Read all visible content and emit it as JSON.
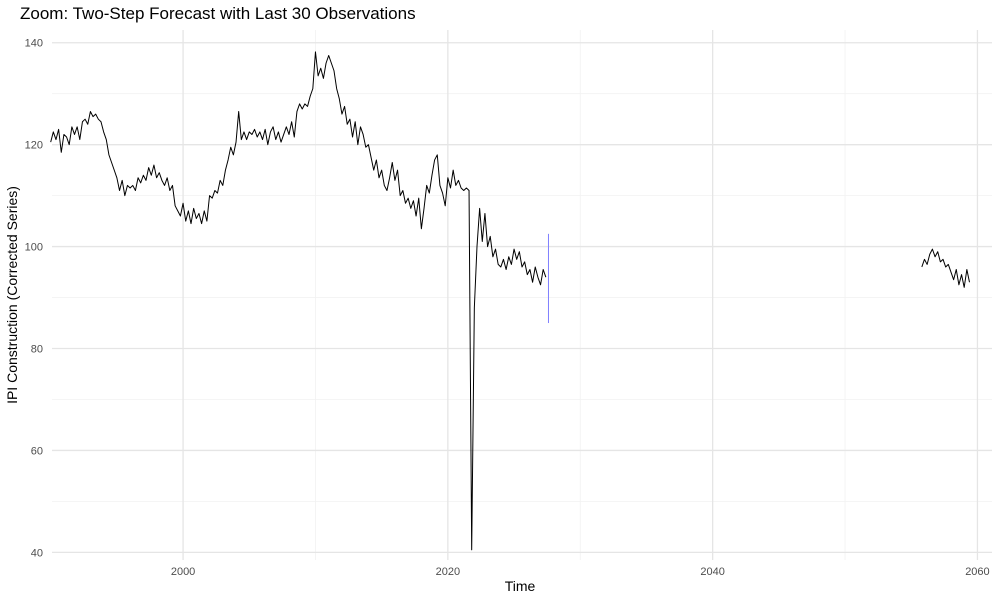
{
  "chart_data": {
    "type": "line",
    "title": "Zoom: Two-Step Forecast with Last 30 Observations",
    "xlabel": "Time",
    "ylabel": "IPI Construction (Corrected Series)",
    "xlim": [
      1990.1,
      2061.1
    ],
    "ylim": [
      38.5,
      142.5
    ],
    "x_ticks": [
      2000,
      2020,
      2040,
      2060
    ],
    "y_ticks": [
      40,
      60,
      80,
      100,
      120,
      140
    ],
    "grid": true,
    "legend": "none",
    "colors": {
      "observed": "#000000",
      "forecast_interval": "#8080ff"
    },
    "series": [
      {
        "points": [
          [
            1990.0,
            120.5
          ],
          [
            1990.2,
            122.5
          ],
          [
            1990.4,
            121.0
          ],
          [
            1990.6,
            123.0
          ],
          [
            1990.8,
            118.5
          ],
          [
            1991.0,
            122.0
          ],
          [
            1991.2,
            121.5
          ],
          [
            1991.4,
            120.0
          ],
          [
            1991.6,
            123.5
          ],
          [
            1991.8,
            122.0
          ],
          [
            1992.0,
            123.5
          ],
          [
            1992.2,
            121.0
          ],
          [
            1992.4,
            124.5
          ],
          [
            1992.6,
            125.0
          ],
          [
            1992.8,
            124.0
          ],
          [
            1993.0,
            126.5
          ],
          [
            1993.2,
            125.5
          ],
          [
            1993.4,
            126.0
          ],
          [
            1993.6,
            125.0
          ],
          [
            1993.8,
            124.5
          ],
          [
            1994.0,
            122.5
          ],
          [
            1994.2,
            121.0
          ],
          [
            1994.4,
            118.0
          ],
          [
            1994.6,
            116.5
          ],
          [
            1994.8,
            115.0
          ],
          [
            1995.0,
            113.5
          ],
          [
            1995.2,
            111.0
          ],
          [
            1995.4,
            113.0
          ],
          [
            1995.6,
            110.0
          ],
          [
            1995.8,
            112.0
          ],
          [
            1996.0,
            111.5
          ],
          [
            1996.2,
            112.0
          ],
          [
            1996.4,
            111.0
          ],
          [
            1996.6,
            113.5
          ],
          [
            1996.8,
            112.5
          ],
          [
            1997.0,
            114.0
          ],
          [
            1997.2,
            113.0
          ],
          [
            1997.4,
            115.5
          ],
          [
            1997.6,
            114.0
          ],
          [
            1997.8,
            116.0
          ],
          [
            1998.0,
            113.5
          ],
          [
            1998.2,
            114.5
          ],
          [
            1998.4,
            113.0
          ],
          [
            1998.6,
            112.0
          ],
          [
            1998.8,
            113.5
          ],
          [
            1999.0,
            111.0
          ],
          [
            1999.2,
            112.0
          ],
          [
            1999.4,
            108.0
          ],
          [
            1999.6,
            107.0
          ],
          [
            1999.8,
            106.0
          ],
          [
            2000.0,
            108.5
          ],
          [
            2000.2,
            105.0
          ],
          [
            2000.4,
            107.0
          ],
          [
            2000.6,
            104.5
          ],
          [
            2000.8,
            107.5
          ],
          [
            2001.0,
            105.5
          ],
          [
            2001.2,
            106.5
          ],
          [
            2001.4,
            104.5
          ],
          [
            2001.6,
            107.0
          ],
          [
            2001.8,
            105.0
          ],
          [
            2002.0,
            110.0
          ],
          [
            2002.2,
            109.5
          ],
          [
            2002.4,
            111.0
          ],
          [
            2002.6,
            110.5
          ],
          [
            2002.8,
            113.0
          ],
          [
            2003.0,
            112.0
          ],
          [
            2003.2,
            115.0
          ],
          [
            2003.4,
            117.0
          ],
          [
            2003.6,
            119.5
          ],
          [
            2003.8,
            118.0
          ],
          [
            2004.0,
            120.5
          ],
          [
            2004.2,
            126.5
          ],
          [
            2004.4,
            121.0
          ],
          [
            2004.6,
            122.5
          ],
          [
            2004.8,
            121.0
          ],
          [
            2005.0,
            122.5
          ],
          [
            2005.2,
            122.0
          ],
          [
            2005.4,
            123.0
          ],
          [
            2005.6,
            121.5
          ],
          [
            2005.8,
            122.5
          ],
          [
            2006.0,
            121.0
          ],
          [
            2006.2,
            123.0
          ],
          [
            2006.4,
            120.0
          ],
          [
            2006.6,
            122.5
          ],
          [
            2006.8,
            123.5
          ],
          [
            2007.0,
            121.0
          ],
          [
            2007.2,
            122.5
          ],
          [
            2007.4,
            120.5
          ],
          [
            2007.6,
            122.0
          ],
          [
            2007.8,
            123.5
          ],
          [
            2008.0,
            122.0
          ],
          [
            2008.2,
            124.5
          ],
          [
            2008.4,
            121.5
          ],
          [
            2008.6,
            126.5
          ],
          [
            2008.8,
            128.0
          ],
          [
            2009.0,
            127.0
          ],
          [
            2009.2,
            128.0
          ],
          [
            2009.4,
            127.5
          ],
          [
            2009.6,
            129.5
          ],
          [
            2009.8,
            131.0
          ],
          [
            2010.0,
            138.2
          ],
          [
            2010.2,
            133.5
          ],
          [
            2010.4,
            135.0
          ],
          [
            2010.6,
            133.0
          ],
          [
            2010.8,
            136.0
          ],
          [
            2011.0,
            137.5
          ],
          [
            2011.2,
            136.0
          ],
          [
            2011.4,
            134.5
          ],
          [
            2011.6,
            131.0
          ],
          [
            2011.8,
            129.0
          ],
          [
            2012.0,
            126.0
          ],
          [
            2012.2,
            127.5
          ],
          [
            2012.4,
            124.0
          ],
          [
            2012.6,
            125.0
          ],
          [
            2012.8,
            121.5
          ],
          [
            2013.0,
            124.5
          ],
          [
            2013.2,
            120.0
          ],
          [
            2013.4,
            123.5
          ],
          [
            2013.6,
            122.0
          ],
          [
            2013.8,
            119.5
          ],
          [
            2014.0,
            120.0
          ],
          [
            2014.2,
            117.5
          ],
          [
            2014.4,
            115.0
          ],
          [
            2014.6,
            117.0
          ],
          [
            2014.8,
            113.5
          ],
          [
            2015.0,
            115.0
          ],
          [
            2015.2,
            112.0
          ],
          [
            2015.4,
            111.0
          ],
          [
            2015.6,
            113.5
          ],
          [
            2015.8,
            116.5
          ],
          [
            2016.0,
            113.0
          ],
          [
            2016.2,
            115.0
          ],
          [
            2016.4,
            110.0
          ],
          [
            2016.6,
            111.0
          ],
          [
            2016.8,
            108.5
          ],
          [
            2017.0,
            109.5
          ],
          [
            2017.2,
            107.5
          ],
          [
            2017.4,
            109.0
          ],
          [
            2017.6,
            106.0
          ],
          [
            2017.8,
            109.5
          ],
          [
            2018.0,
            103.5
          ],
          [
            2018.2,
            107.5
          ],
          [
            2018.4,
            112.0
          ],
          [
            2018.6,
            110.5
          ],
          [
            2018.8,
            114.0
          ],
          [
            2019.0,
            117.0
          ],
          [
            2019.2,
            118.0
          ],
          [
            2019.4,
            112.0
          ],
          [
            2019.6,
            110.5
          ],
          [
            2019.8,
            108.0
          ],
          [
            2020.0,
            113.5
          ],
          [
            2020.2,
            111.5
          ],
          [
            2020.4,
            115.0
          ],
          [
            2020.6,
            112.0
          ],
          [
            2020.8,
            113.0
          ],
          [
            2021.0,
            111.5
          ],
          [
            2021.2,
            111.0
          ],
          [
            2021.4,
            111.5
          ],
          [
            2021.6,
            111.0
          ],
          [
            2021.8,
            40.5
          ],
          [
            2022.0,
            88.0
          ],
          [
            2022.2,
            100.0
          ],
          [
            2022.4,
            107.5
          ],
          [
            2022.6,
            101.0
          ],
          [
            2022.8,
            106.5
          ],
          [
            2023.0,
            100.0
          ],
          [
            2023.2,
            102.0
          ],
          [
            2023.4,
            98.0
          ],
          [
            2023.6,
            99.5
          ],
          [
            2023.8,
            96.5
          ],
          [
            2024.0,
            96.0
          ],
          [
            2024.2,
            97.5
          ],
          [
            2024.4,
            95.5
          ],
          [
            2024.6,
            98.0
          ],
          [
            2024.8,
            96.5
          ],
          [
            2025.0,
            99.5
          ],
          [
            2025.2,
            97.5
          ],
          [
            2025.4,
            99.0
          ],
          [
            2025.6,
            96.0
          ],
          [
            2025.8,
            97.0
          ],
          [
            2026.0,
            94.5
          ],
          [
            2026.2,
            95.5
          ],
          [
            2026.4,
            93.0
          ],
          [
            2026.6,
            96.0
          ],
          [
            2026.8,
            94.0
          ],
          [
            2027.0,
            92.5
          ],
          [
            2027.2,
            95.5
          ],
          [
            2027.4,
            94.0
          ]
        ]
      },
      {
        "points": [
          [
            2055.8,
            96.0
          ],
          [
            2056.0,
            97.5
          ],
          [
            2056.2,
            96.5
          ],
          [
            2056.4,
            98.5
          ],
          [
            2056.6,
            99.5
          ],
          [
            2056.8,
            98.0
          ],
          [
            2057.0,
            99.0
          ],
          [
            2057.2,
            97.0
          ],
          [
            2057.4,
            97.5
          ],
          [
            2057.6,
            96.0
          ],
          [
            2057.8,
            96.5
          ],
          [
            2058.0,
            95.0
          ],
          [
            2058.2,
            93.5
          ],
          [
            2058.4,
            95.5
          ],
          [
            2058.6,
            92.5
          ],
          [
            2058.8,
            94.5
          ],
          [
            2059.0,
            92.0
          ],
          [
            2059.2,
            95.5
          ],
          [
            2059.4,
            93.0
          ]
        ]
      },
      {
        "points": [
          [
            2027.6,
            102.5
          ],
          [
            2027.6,
            85.0
          ]
        ]
      }
    ]
  }
}
